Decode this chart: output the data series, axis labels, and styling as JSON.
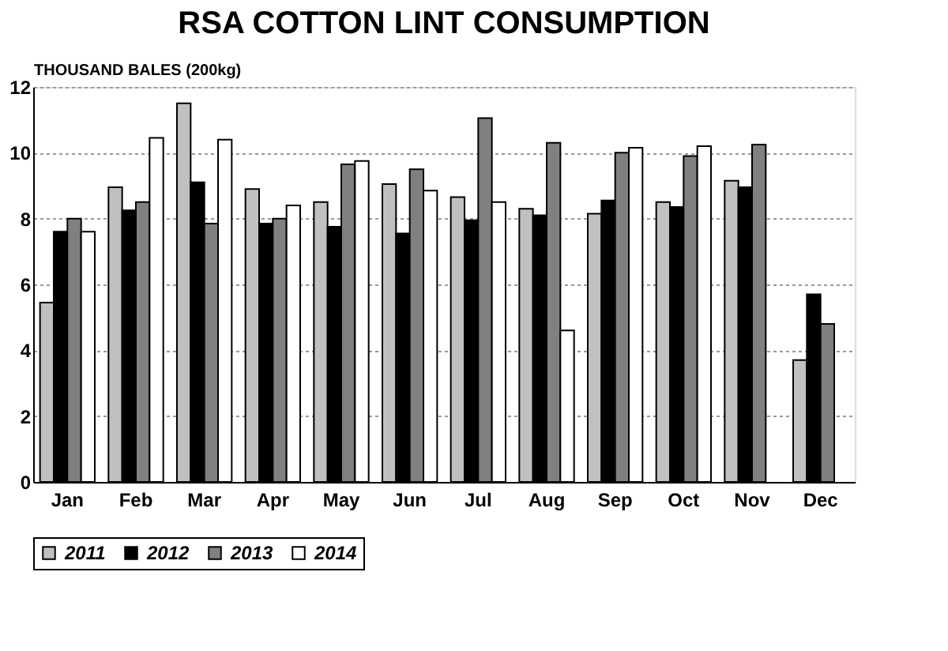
{
  "chart_data": {
    "type": "bar",
    "title": "RSA COTTON LINT CONSUMPTION",
    "ylabel": "THOUSAND BALES (200kg)",
    "categories": [
      "Jan",
      "Feb",
      "Mar",
      "Apr",
      "May",
      "Jun",
      "Jul",
      "Aug",
      "Sep",
      "Oct",
      "Nov",
      "Dec"
    ],
    "series": [
      {
        "name": "2011",
        "color": "#c0c0c0",
        "values": [
          5.45,
          8.95,
          11.5,
          8.9,
          8.5,
          9.05,
          8.65,
          8.3,
          8.15,
          8.5,
          9.15,
          3.7
        ]
      },
      {
        "name": "2012",
        "color": "#000000",
        "values": [
          7.6,
          8.25,
          9.1,
          7.85,
          7.75,
          7.55,
          7.95,
          8.1,
          8.55,
          8.35,
          8.95,
          5.7
        ]
      },
      {
        "name": "2013",
        "color": "#808080",
        "values": [
          8.0,
          8.5,
          7.85,
          8.0,
          9.65,
          9.5,
          11.05,
          10.3,
          10.0,
          9.9,
          10.25,
          4.8
        ]
      },
      {
        "name": "2014",
        "color": "#ffffff",
        "values": [
          7.6,
          10.45,
          10.4,
          8.4,
          9.75,
          8.85,
          8.5,
          4.6,
          10.15,
          10.2,
          null,
          null
        ]
      }
    ],
    "ylim": [
      0,
      12
    ],
    "yticks": [
      0,
      2,
      4,
      6,
      8,
      10,
      12
    ],
    "grid": "y",
    "legend": "bottom"
  }
}
